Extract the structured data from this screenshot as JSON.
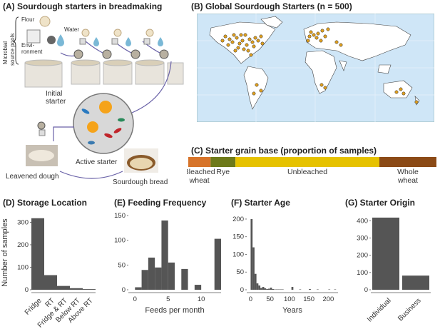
{
  "panels": {
    "a": {
      "title": "(A) Sourdough starters in breadmaking",
      "microbial_label_1": "Microbial",
      "microbial_label_2": "source pools",
      "flour": "Flour",
      "water": "Water",
      "environment_1": "Envi-",
      "environment_2": "ronment",
      "initial_starter_1": "Initial",
      "initial_starter_2": "starter",
      "active_starter": "Active starter",
      "leavened_dough": "Leavened dough",
      "sourdough_bread": "Sourdough bread"
    },
    "b": {
      "title": "(B) Global Sourdough Starters  (n = 500)"
    },
    "c": {
      "title": "(C) Starter grain base  (proportion of samples)"
    }
  },
  "colors": {
    "bar": "#555555",
    "ocean": "#cfe6f7",
    "land": "#ffffff",
    "point": "#e0a020",
    "bleached": "#d7742a",
    "rye": "#6e7a1a",
    "unbleached": "#e6c200",
    "whole": "#8b4a16"
  },
  "chart_data": [
    {
      "id": "grain",
      "type": "bar",
      "orientation": "stacked-horizontal",
      "title": "(C) Starter grain base  (proportion of samples)",
      "categories": [
        "Bleached wheat",
        "Rye",
        "Unbleached",
        "Whole wheat"
      ],
      "category_lines": [
        [
          "Bleached",
          "wheat"
        ],
        [
          "Rye"
        ],
        [
          "Unbleached"
        ],
        [
          "Whole",
          "wheat"
        ]
      ],
      "values": [
        0.09,
        0.1,
        0.58,
        0.23
      ]
    },
    {
      "id": "storage",
      "type": "bar",
      "title": "(D) Storage Location",
      "ylabel": "Number of samples",
      "xlabel": "",
      "categories": [
        "Fridge",
        "RT",
        "Fridge & RT",
        "Below RT",
        "Above RT"
      ],
      "values": [
        318,
        65,
        17,
        7,
        3
      ],
      "ylim": [
        0,
        330
      ],
      "yticks": [
        0,
        100,
        200,
        300
      ]
    },
    {
      "id": "feeding",
      "type": "bar",
      "title": "(E) Feeding Frequency",
      "xlabel": "Feeds per month",
      "ylabel": "",
      "bin_edges": [
        0,
        1,
        2,
        3,
        4,
        5,
        6,
        7,
        8,
        9,
        10,
        11,
        12,
        13
      ],
      "values": [
        5,
        40,
        65,
        45,
        140,
        55,
        0,
        42,
        0,
        10,
        0,
        0,
        103
      ],
      "xlim": [
        -1,
        13
      ],
      "xticks": [
        0,
        5,
        10
      ],
      "ylim": [
        0,
        150
      ],
      "yticks": [
        0,
        50,
        100,
        150
      ]
    },
    {
      "id": "age",
      "type": "bar",
      "title": "(F) Starter Age",
      "xlabel": "Years",
      "ylabel": "",
      "bin_edges": [
        0,
        5,
        10,
        15,
        20,
        25,
        30,
        35,
        40,
        45,
        50,
        55,
        60,
        65,
        70,
        75,
        80,
        85,
        90,
        95,
        100,
        105,
        110,
        115,
        120,
        125,
        130,
        135,
        140,
        145,
        150,
        155,
        160,
        165,
        170,
        175,
        180,
        185,
        190,
        195,
        200,
        205,
        210,
        215,
        220
      ],
      "values": [
        200,
        120,
        45,
        18,
        12,
        5,
        8,
        4,
        2,
        3,
        6,
        2,
        1,
        1,
        1,
        1,
        1,
        0,
        0,
        0,
        0,
        8,
        0,
        0,
        0,
        1,
        0,
        0,
        0,
        0,
        2,
        0,
        0,
        0,
        1,
        0,
        0,
        0,
        0,
        0,
        1,
        0,
        0,
        1
      ],
      "xlim": [
        -10,
        225
      ],
      "xticks": [
        0,
        50,
        100,
        150,
        200
      ],
      "ylim": [
        0,
        210
      ],
      "yticks": [
        0,
        50,
        100,
        150,
        200
      ]
    },
    {
      "id": "origin",
      "type": "bar",
      "title": "(G) Starter Origin",
      "xlabel": "",
      "ylabel": "",
      "categories": [
        "Individual",
        "Business"
      ],
      "values": [
        418,
        82
      ],
      "ylim": [
        0,
        430
      ],
      "yticks": [
        0,
        100,
        200,
        300,
        400
      ]
    }
  ]
}
